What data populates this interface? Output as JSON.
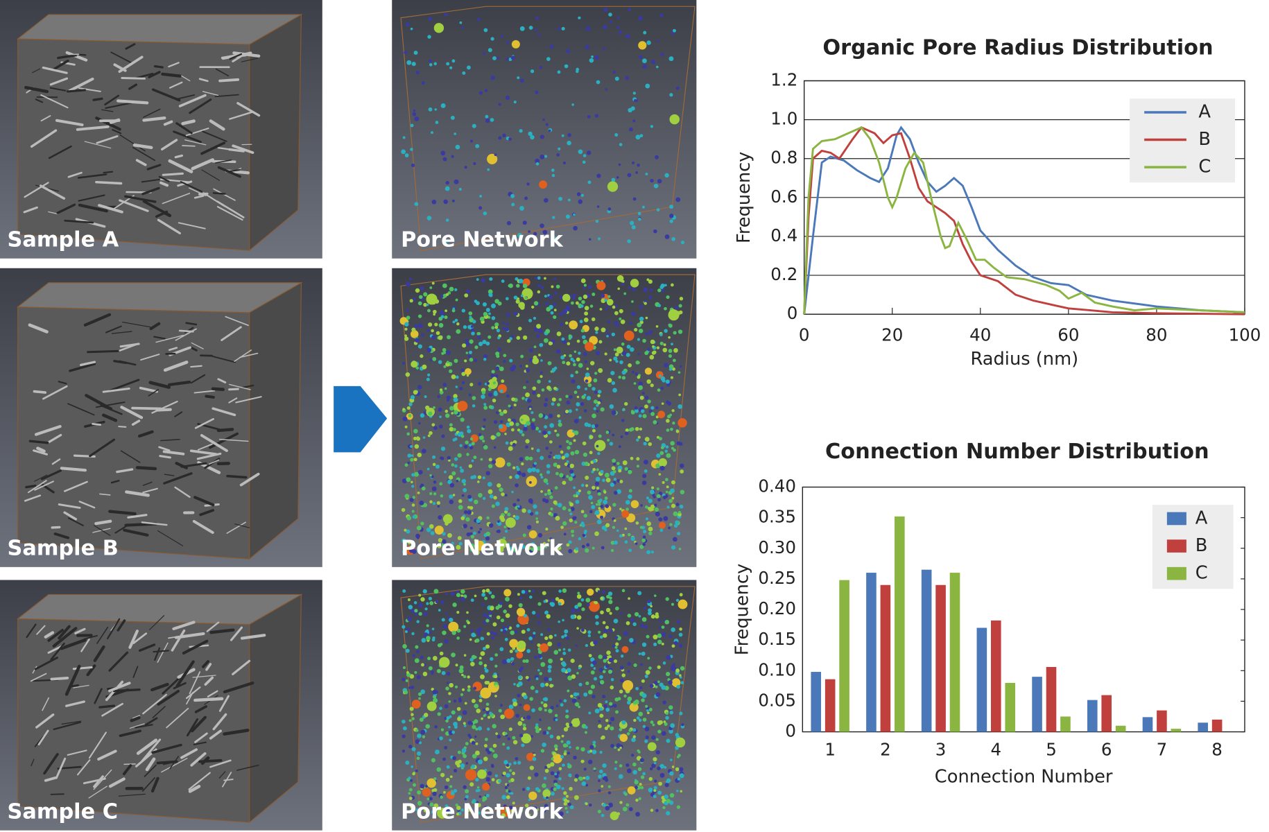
{
  "panels": {
    "samples": [
      "Sample A",
      "Sample B",
      "Sample C"
    ],
    "networks": [
      "Pore Network",
      "Pore Network",
      "Pore Network"
    ]
  },
  "chart_data": [
    {
      "type": "line",
      "title": "Organic Pore Radius Distribution",
      "x_label": "Radius (nm)",
      "y_label": "Frequency",
      "xlim": [
        0,
        100
      ],
      "xticks": [
        0,
        20,
        40,
        60,
        80,
        100
      ],
      "ylim": [
        0,
        1.2
      ],
      "yticks": [
        0,
        0.2,
        0.4,
        0.6,
        0.8,
        {
          "value": 1,
          "label": "1.0"
        },
        1.2
      ],
      "grid": true,
      "legend": "upper right",
      "series": [
        {
          "name": "A",
          "color": "#4a78b8",
          "x": [
            0,
            2,
            4,
            6,
            9,
            12,
            15,
            17,
            19,
            21,
            22,
            24,
            26,
            28,
            30,
            32,
            34,
            36,
            38,
            40,
            44,
            48,
            52,
            56,
            60,
            64,
            70,
            80,
            90,
            100
          ],
          "values": [
            0,
            0.4,
            0.78,
            0.81,
            0.79,
            0.74,
            0.7,
            0.68,
            0.75,
            0.92,
            0.96,
            0.9,
            0.78,
            0.68,
            0.63,
            0.66,
            0.7,
            0.66,
            0.55,
            0.43,
            0.33,
            0.25,
            0.19,
            0.16,
            0.15,
            0.1,
            0.07,
            0.04,
            0.02,
            0.01
          ]
        },
        {
          "name": "B",
          "color": "#c0403e",
          "x": [
            0,
            1,
            2,
            4,
            6,
            8,
            11,
            13,
            16,
            18,
            20,
            22,
            24,
            26,
            28,
            30,
            32,
            34,
            36,
            38,
            40,
            44,
            48,
            52,
            56,
            60,
            65,
            70,
            80,
            100
          ],
          "values": [
            0,
            0.5,
            0.8,
            0.84,
            0.83,
            0.8,
            0.9,
            0.96,
            0.93,
            0.88,
            0.92,
            0.93,
            0.8,
            0.65,
            0.58,
            0.55,
            0.52,
            0.48,
            0.36,
            0.27,
            0.2,
            0.17,
            0.1,
            0.07,
            0.05,
            0.03,
            0.02,
            0.01,
            0.005,
            0
          ]
        },
        {
          "name": "C",
          "color": "#8ab540",
          "x": [
            0,
            1,
            2,
            4,
            7,
            10,
            13,
            15,
            17,
            19,
            20,
            21,
            23,
            25,
            27,
            29,
            31,
            32,
            33,
            35,
            37,
            39,
            41,
            43,
            46,
            50,
            55,
            58,
            60,
            63,
            66,
            70,
            75,
            80,
            90,
            100
          ],
          "values": [
            0,
            0.6,
            0.85,
            0.89,
            0.9,
            0.93,
            0.96,
            0.9,
            0.78,
            0.6,
            0.55,
            0.6,
            0.75,
            0.83,
            0.78,
            0.58,
            0.4,
            0.34,
            0.35,
            0.47,
            0.38,
            0.28,
            0.28,
            0.24,
            0.19,
            0.18,
            0.15,
            0.12,
            0.08,
            0.11,
            0.06,
            0.04,
            0.02,
            0.03,
            0.02,
            0.01
          ]
        }
      ]
    },
    {
      "type": "bar",
      "title": "Connection Number Distribution",
      "x_label": "Connection Number",
      "y_label": "Frequency",
      "categories": [
        "1",
        "2",
        "3",
        "4",
        "5",
        "6",
        "7",
        "8"
      ],
      "ylim": [
        0,
        0.4
      ],
      "yticks": [
        0,
        0.05,
        {
          "value": 0.1,
          "label": "0.10"
        },
        0.15,
        {
          "value": 0.2,
          "label": "0.20"
        },
        0.25,
        {
          "value": 0.3,
          "label": "0.30"
        },
        0.35,
        {
          "value": 0.4,
          "label": "0.40"
        }
      ],
      "grid": false,
      "legend": "upper right",
      "series": [
        {
          "name": "A",
          "color": "#4a78b8",
          "values": [
            0.098,
            0.26,
            0.265,
            0.17,
            0.09,
            0.052,
            0.024,
            0.015
          ]
        },
        {
          "name": "B",
          "color": "#c0403e",
          "values": [
            0.086,
            0.24,
            0.24,
            0.182,
            0.106,
            0.06,
            0.035,
            0.02
          ]
        },
        {
          "name": "C",
          "color": "#8ab540",
          "values": [
            0.248,
            0.352,
            0.26,
            0.08,
            0.025,
            0.01,
            0.005,
            0
          ]
        }
      ]
    }
  ]
}
